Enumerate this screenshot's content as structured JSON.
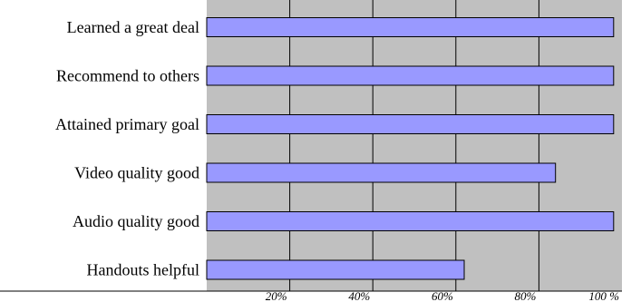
{
  "chart_data": {
    "type": "bar",
    "orientation": "horizontal",
    "categories": [
      "Learned a great deal",
      "Recommend to others",
      "Attained primary goal",
      "Video quality good",
      "Audio quality good",
      "Handouts helpful"
    ],
    "values": [
      98,
      98,
      98,
      84,
      98,
      62
    ],
    "xlim": [
      0,
      100
    ],
    "x_ticks": [
      "20%",
      "40%",
      "60%",
      "80%",
      "100 %"
    ],
    "x_tick_values": [
      20,
      40,
      60,
      80,
      100
    ],
    "grid": true,
    "title": "",
    "xlabel": "",
    "ylabel": "",
    "colors": {
      "plot_background": "#c0c0c0",
      "bar_fill": "#9999ff",
      "bar_stroke": "#000000",
      "gridline": "#000000"
    }
  }
}
